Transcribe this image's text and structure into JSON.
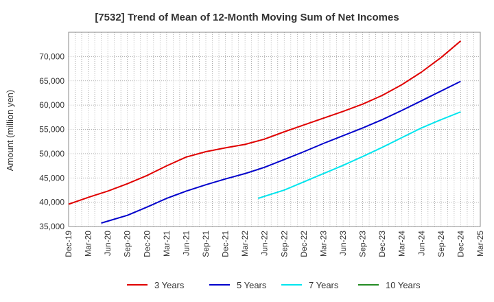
{
  "chart_data": {
    "type": "line",
    "title": "[7532]  Trend of Mean of 12-Month Moving Sum of Net Incomes",
    "ylabel": "Amount (million yen)",
    "xlabel": "",
    "ylim": [
      35000,
      75000
    ],
    "yticks": [
      35000,
      40000,
      45000,
      50000,
      55000,
      60000,
      65000,
      70000
    ],
    "ytick_labels": [
      "35,000",
      "40,000",
      "45,000",
      "50,000",
      "55,000",
      "60,000",
      "65,000",
      "70,000"
    ],
    "x_range": [
      "2019-12",
      "2025-03"
    ],
    "xtick_labels": [
      "Dec-19",
      "Mar-20",
      "Jun-20",
      "Sep-20",
      "Dec-20",
      "Mar-21",
      "Jun-21",
      "Sep-21",
      "Dec-21",
      "Mar-22",
      "Jun-22",
      "Sep-22",
      "Dec-22",
      "Mar-23",
      "Jun-23",
      "Sep-23",
      "Dec-23",
      "Mar-24",
      "Jun-24",
      "Sep-24",
      "Dec-24",
      "Mar-25"
    ],
    "grid": true,
    "legend_position": "bottom",
    "series": [
      {
        "name": "3 Years",
        "color": "#e00000",
        "points": [
          [
            "2019-12",
            39600
          ],
          [
            "2020-03",
            41000
          ],
          [
            "2020-06",
            42300
          ],
          [
            "2020-09",
            43800
          ],
          [
            "2020-12",
            45500
          ],
          [
            "2021-03",
            47500
          ],
          [
            "2021-06",
            49300
          ],
          [
            "2021-09",
            50400
          ],
          [
            "2021-12",
            51200
          ],
          [
            "2022-03",
            51900
          ],
          [
            "2022-06",
            53000
          ],
          [
            "2022-09",
            54500
          ],
          [
            "2022-12",
            55900
          ],
          [
            "2023-03",
            57300
          ],
          [
            "2023-06",
            58700
          ],
          [
            "2023-09",
            60200
          ],
          [
            "2023-12",
            62000
          ],
          [
            "2024-03",
            64200
          ],
          [
            "2024-06",
            66800
          ],
          [
            "2024-09",
            69800
          ],
          [
            "2024-12",
            73200
          ]
        ]
      },
      {
        "name": "5 Years",
        "color": "#0000cc",
        "points": [
          [
            "2020-05",
            35700
          ],
          [
            "2020-09",
            37300
          ],
          [
            "2020-12",
            39000
          ],
          [
            "2021-03",
            40800
          ],
          [
            "2021-06",
            42300
          ],
          [
            "2021-09",
            43600
          ],
          [
            "2021-12",
            44800
          ],
          [
            "2022-03",
            45900
          ],
          [
            "2022-06",
            47200
          ],
          [
            "2022-09",
            48800
          ],
          [
            "2022-12",
            50400
          ],
          [
            "2023-03",
            52100
          ],
          [
            "2023-06",
            53700
          ],
          [
            "2023-09",
            55300
          ],
          [
            "2023-12",
            57000
          ],
          [
            "2024-03",
            58900
          ],
          [
            "2024-06",
            60900
          ],
          [
            "2024-09",
            62900
          ],
          [
            "2024-12",
            64900
          ]
        ]
      },
      {
        "name": "7 Years",
        "color": "#00e5ee",
        "points": [
          [
            "2022-05",
            40800
          ],
          [
            "2022-09",
            42500
          ],
          [
            "2022-12",
            44200
          ],
          [
            "2023-03",
            45900
          ],
          [
            "2023-06",
            47600
          ],
          [
            "2023-09",
            49400
          ],
          [
            "2023-12",
            51300
          ],
          [
            "2024-03",
            53300
          ],
          [
            "2024-06",
            55300
          ],
          [
            "2024-09",
            57000
          ],
          [
            "2024-12",
            58600
          ]
        ]
      },
      {
        "name": "10 Years",
        "color": "#228b22",
        "points": []
      }
    ]
  }
}
